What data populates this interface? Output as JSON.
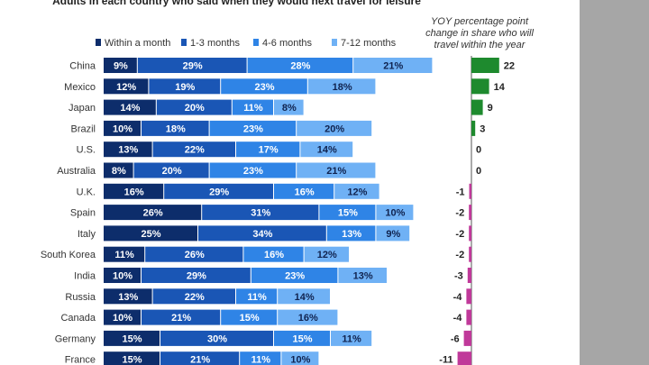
{
  "chart_data": {
    "type": "bar",
    "stacked": true,
    "subtitle": "Adults in each country who said when they would next travel for leisure",
    "legend": [
      "Within a month",
      "1-3 months",
      "4-6 months",
      "7-12 months"
    ],
    "colors": [
      "#0d2d6b",
      "#1a56b5",
      "#2f84e6",
      "#6fb1f5"
    ],
    "yoy_title": "YOY percentage point change in share who will travel within the year",
    "positive_color": "#1e8a2e",
    "negative_color": "#c0399a",
    "rows": [
      {
        "country": "China",
        "values": [
          9,
          29,
          28,
          21
        ],
        "change": 22
      },
      {
        "country": "Mexico",
        "values": [
          12,
          19,
          23,
          18
        ],
        "change": 14
      },
      {
        "country": "Japan",
        "values": [
          14,
          20,
          11,
          8
        ],
        "change": 9
      },
      {
        "country": "Brazil",
        "values": [
          10,
          18,
          23,
          20
        ],
        "change": 3
      },
      {
        "country": "U.S.",
        "values": [
          13,
          22,
          17,
          14
        ],
        "change": 0
      },
      {
        "country": "Australia",
        "values": [
          8,
          20,
          23,
          21
        ],
        "change": 0
      },
      {
        "country": "U.K.",
        "values": [
          16,
          29,
          16,
          12
        ],
        "change": -1
      },
      {
        "country": "Spain",
        "values": [
          26,
          31,
          15,
          10
        ],
        "change": -2
      },
      {
        "country": "Italy",
        "values": [
          25,
          34,
          13,
          9
        ],
        "change": -2
      },
      {
        "country": "South Korea",
        "values": [
          11,
          26,
          16,
          12
        ],
        "change": -2
      },
      {
        "country": "India",
        "values": [
          10,
          29,
          23,
          13
        ],
        "change": -3
      },
      {
        "country": "Russia",
        "values": [
          13,
          22,
          11,
          14
        ],
        "change": -4
      },
      {
        "country": "Canada",
        "values": [
          10,
          21,
          15,
          16
        ],
        "change": -4
      },
      {
        "country": "Germany",
        "values": [
          15,
          30,
          15,
          11
        ],
        "change": -6
      },
      {
        "country": "France",
        "values": [
          15,
          21,
          11,
          10
        ],
        "change": -11
      }
    ]
  }
}
